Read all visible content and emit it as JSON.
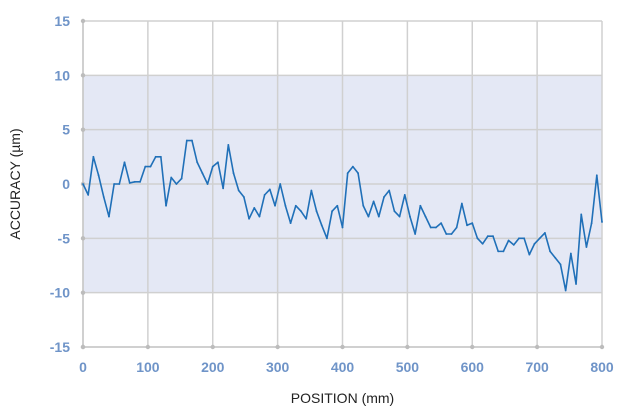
{
  "chart_data": {
    "type": "line",
    "xlabel": "POSITION (mm)",
    "ylabel": "ACCURACY (µm)",
    "xlim": [
      0,
      800
    ],
    "ylim": [
      -15,
      15
    ],
    "x_ticks": [
      0,
      100,
      200,
      300,
      400,
      500,
      600,
      700,
      800
    ],
    "y_ticks": [
      15,
      10,
      5,
      0,
      -5,
      -10,
      -15
    ],
    "x_tick_labels": [
      "0",
      "100",
      "200",
      "300",
      "400",
      "500",
      "600",
      "700",
      "800"
    ],
    "y_tick_labels": [
      "15",
      "10",
      "5",
      "0",
      "-5",
      "-10",
      "-15"
    ],
    "band": {
      "from": -10,
      "to": 10
    },
    "grid": true,
    "series": [
      {
        "x": [
          0,
          8,
          16,
          24,
          32,
          40,
          48,
          56,
          64,
          72,
          80,
          88,
          96,
          104,
          112,
          120,
          128,
          136,
          144,
          152,
          160,
          168,
          176,
          184,
          192,
          200,
          208,
          216,
          224,
          232,
          240,
          248,
          256,
          264,
          272,
          280,
          288,
          296,
          304,
          312,
          320,
          328,
          336,
          344,
          352,
          360,
          368,
          376,
          384,
          392,
          400,
          408,
          416,
          424,
          432,
          440,
          448,
          456,
          464,
          472,
          480,
          488,
          496,
          504,
          512,
          520,
          528,
          536,
          544,
          552,
          560,
          568,
          576,
          584,
          592,
          600,
          608,
          616,
          624,
          632,
          640,
          648,
          656,
          664,
          672,
          680,
          688,
          696,
          704,
          712,
          720,
          728,
          736,
          744,
          752,
          760,
          768,
          776,
          784,
          792,
          800
        ],
        "values": [
          0.0,
          -1.0,
          2.5,
          0.8,
          -1.2,
          -3.0,
          0.0,
          0.0,
          2.0,
          0.1,
          0.2,
          0.2,
          1.6,
          1.6,
          2.5,
          2.5,
          -2.0,
          0.6,
          0.0,
          0.5,
          4.0,
          4.0,
          2.0,
          1.0,
          0.0,
          1.6,
          2.0,
          -0.4,
          3.6,
          1.0,
          -0.6,
          -1.2,
          -3.2,
          -2.2,
          -3.0,
          -1.0,
          -0.5,
          -2.0,
          0.0,
          -2.0,
          -3.6,
          -2.0,
          -2.5,
          -3.2,
          -0.6,
          -2.5,
          -3.8,
          -5.0,
          -2.5,
          -2.0,
          -4.0,
          1.0,
          1.6,
          1.0,
          -2.0,
          -3.0,
          -1.6,
          -3.0,
          -1.2,
          -0.6,
          -2.5,
          -3.0,
          -1.0,
          -3.0,
          -4.6,
          -2.0,
          -3.0,
          -4.0,
          -4.0,
          -3.6,
          -4.6,
          -4.6,
          -4.0,
          -1.8,
          -3.8,
          -3.6,
          -5.0,
          -5.5,
          -4.8,
          -4.8,
          -6.2,
          -6.2,
          -5.2,
          -5.6,
          -5.0,
          -5.0,
          -6.5,
          -5.5,
          -5.0,
          -4.5,
          -6.2,
          -6.8,
          -7.4,
          -9.8,
          -6.4,
          -9.2,
          -2.8,
          -5.8,
          -3.6,
          0.8,
          -3.5
        ]
      }
    ],
    "colors": {
      "line": "#2070b8",
      "band": "#e4e8f5",
      "grid": "#d0d0d0",
      "tick_label": "#6f94c8",
      "axis": "#c8c8c8"
    }
  }
}
